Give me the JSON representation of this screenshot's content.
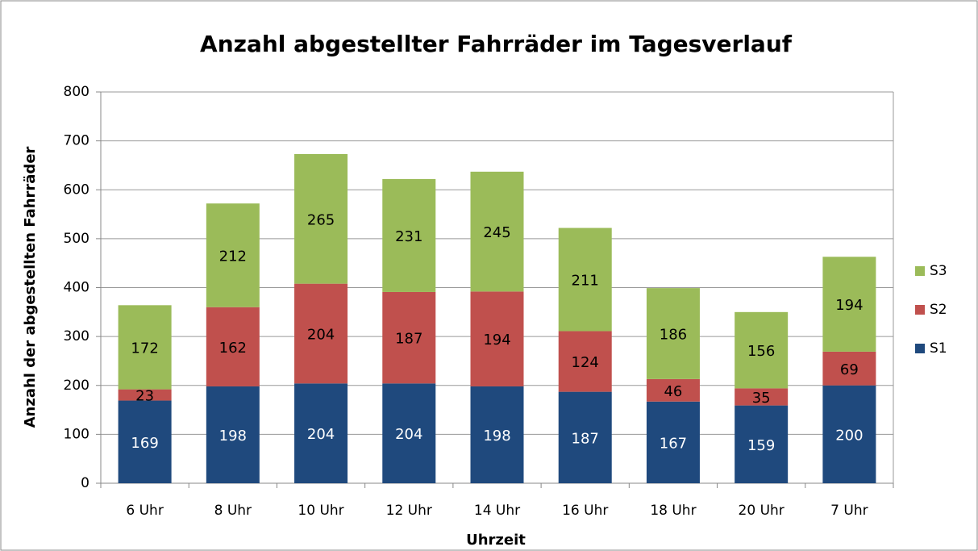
{
  "chart_data": {
    "type": "stacked_bar",
    "title": "Anzahl abgestellter Fahrräder im Tagesverlauf",
    "x_label": "Uhrzeit",
    "y_label": "Anzahl der abgestellten Fahrräder",
    "categories": [
      "6 Uhr",
      "8 Uhr",
      "10 Uhr",
      "12 Uhr",
      "14 Uhr",
      "16 Uhr",
      "18 Uhr",
      "20 Uhr",
      "7 Uhr"
    ],
    "series": [
      {
        "name": "S1",
        "color": "#1f497d",
        "values": [
          169,
          198,
          204,
          204,
          198,
          187,
          167,
          159,
          200
        ]
      },
      {
        "name": "S2",
        "color": "#c0504d",
        "values": [
          23,
          162,
          204,
          187,
          194,
          124,
          46,
          35,
          69
        ]
      },
      {
        "name": "S3",
        "color": "#9bbb59",
        "values": [
          172,
          212,
          265,
          231,
          245,
          211,
          186,
          156,
          194
        ]
      }
    ],
    "ylim": [
      0,
      800
    ],
    "yticks": [
      0,
      100,
      200,
      300,
      400,
      500,
      600,
      700,
      800
    ],
    "grid": true,
    "legend": "right"
  }
}
